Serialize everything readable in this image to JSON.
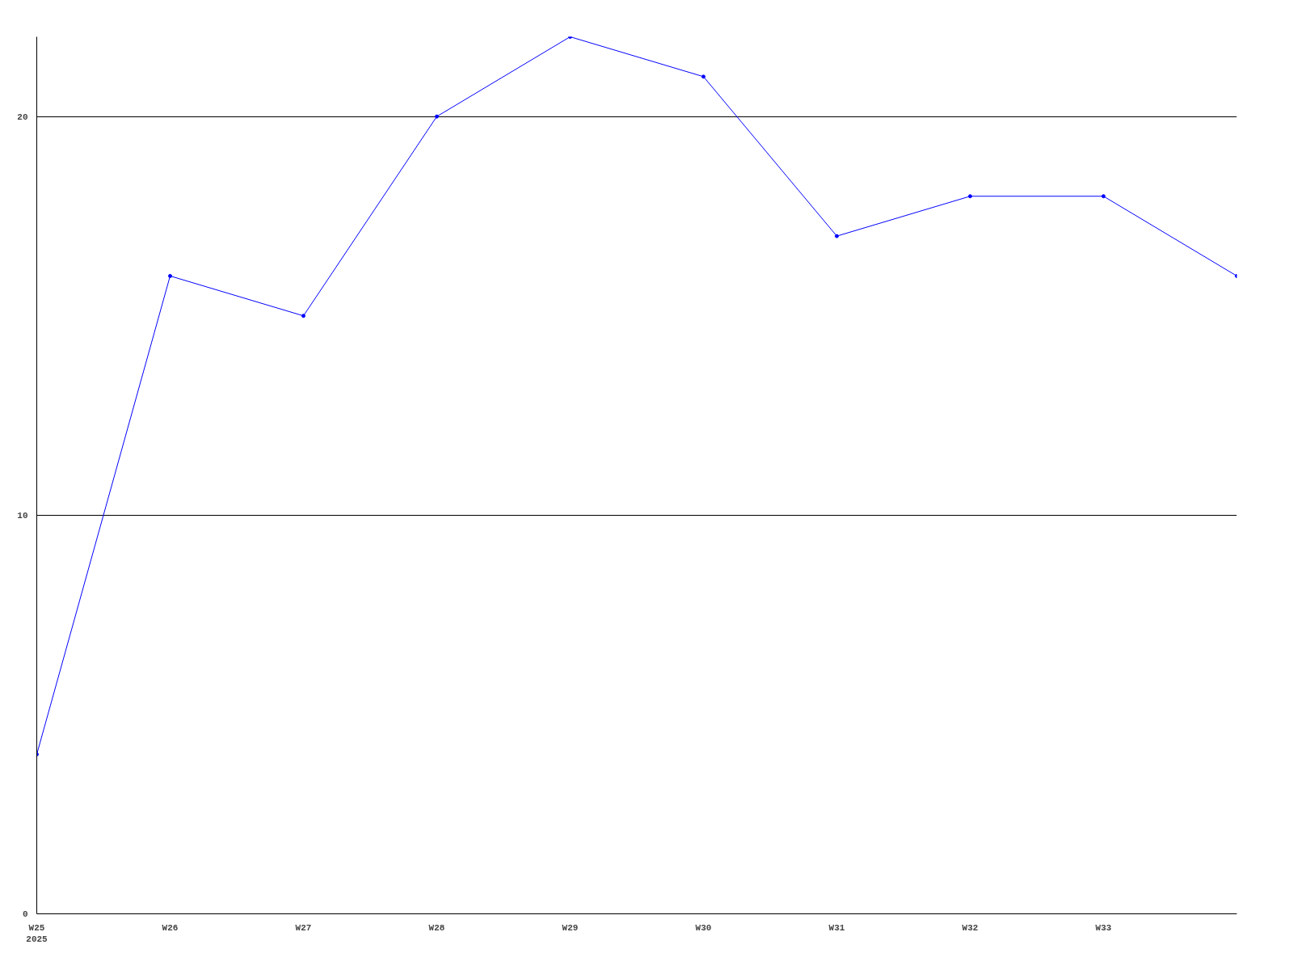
{
  "chart_data": {
    "type": "line",
    "categories": [
      "W25\n2025",
      "W26",
      "W27",
      "W28",
      "W29",
      "W30",
      "W31",
      "W32",
      "W33",
      null
    ],
    "series": [
      {
        "color": "#0000ff",
        "values": [
          4,
          16,
          15,
          20,
          22,
          21,
          17,
          18,
          18,
          16
        ]
      }
    ],
    "ylim": [
      0,
      22
    ],
    "yticks": [
      0,
      10,
      20
    ],
    "grid": "y",
    "marker": "circle",
    "line_style": "solid"
  }
}
